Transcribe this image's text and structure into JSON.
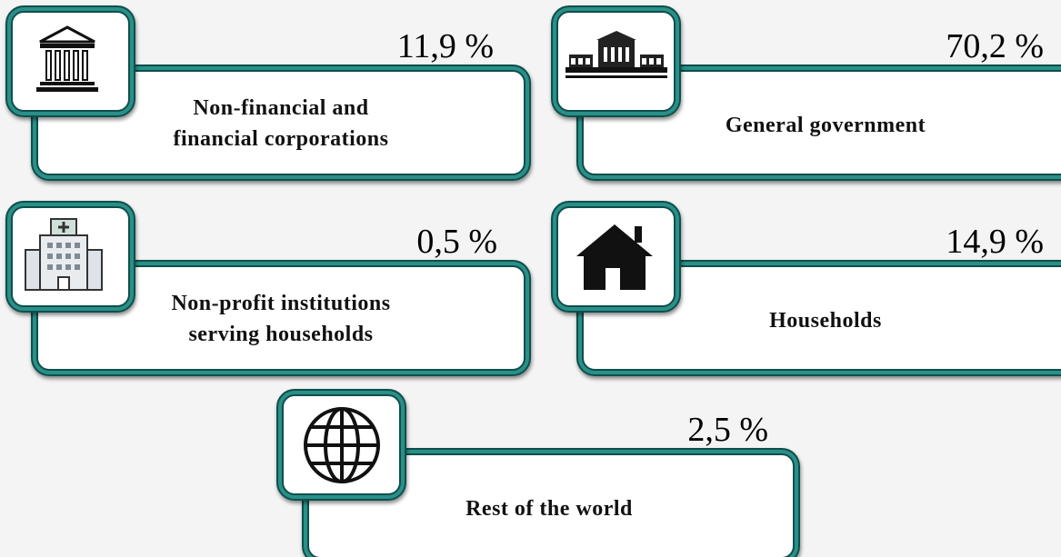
{
  "items": [
    {
      "value": "11,9 %",
      "label": [
        "Non-financial and",
        "financial corporations"
      ]
    },
    {
      "value": "70,2 %",
      "label": [
        "General government"
      ]
    },
    {
      "value": "0,5 %",
      "label": [
        "Non-profit institutions",
        "serving households"
      ]
    },
    {
      "value": "14,9 %",
      "label": [
        "Households"
      ]
    },
    {
      "value": "2,5 %",
      "label": [
        "Rest of the world"
      ]
    }
  ]
}
